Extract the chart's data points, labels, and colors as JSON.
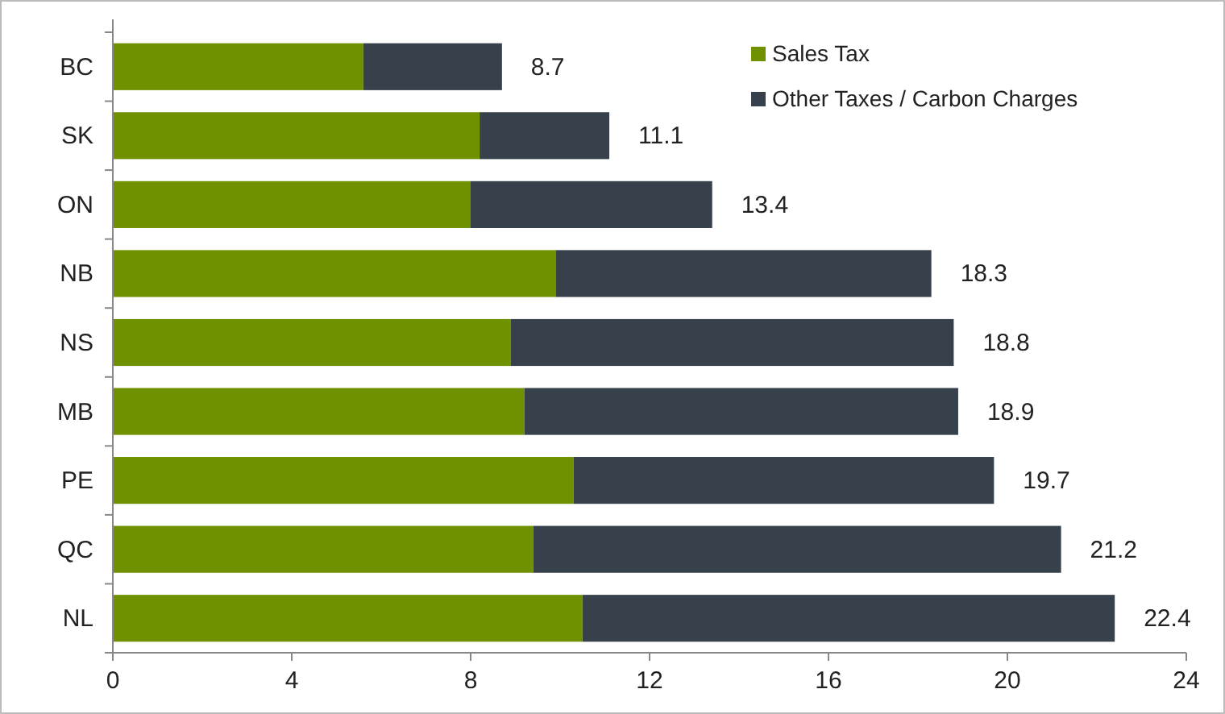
{
  "chart_data": {
    "type": "bar",
    "orientation": "horizontal",
    "stacked": true,
    "categories": [
      "BC",
      "SK",
      "ON",
      "NB",
      "NS",
      "MB",
      "PE",
      "QC",
      "NL"
    ],
    "series": [
      {
        "name": "Sales Tax",
        "color": "#6f9100",
        "values": [
          5.6,
          8.2,
          8.0,
          9.9,
          8.9,
          9.2,
          10.3,
          9.4,
          10.5
        ]
      },
      {
        "name": "Other Taxes / Carbon Charges",
        "color": "#36414b",
        "values": [
          3.1,
          2.9,
          5.4,
          8.4,
          9.9,
          9.7,
          9.4,
          11.8,
          11.9
        ]
      }
    ],
    "totals": [
      "8.7",
      "11.1",
      "13.4",
      "18.3",
      "18.8",
      "18.9",
      "19.7",
      "21.2",
      "22.4"
    ],
    "xlim": [
      0,
      24
    ],
    "xticks": [
      0,
      4,
      8,
      12,
      16,
      20,
      24
    ],
    "grid": false,
    "legend": "top right"
  }
}
